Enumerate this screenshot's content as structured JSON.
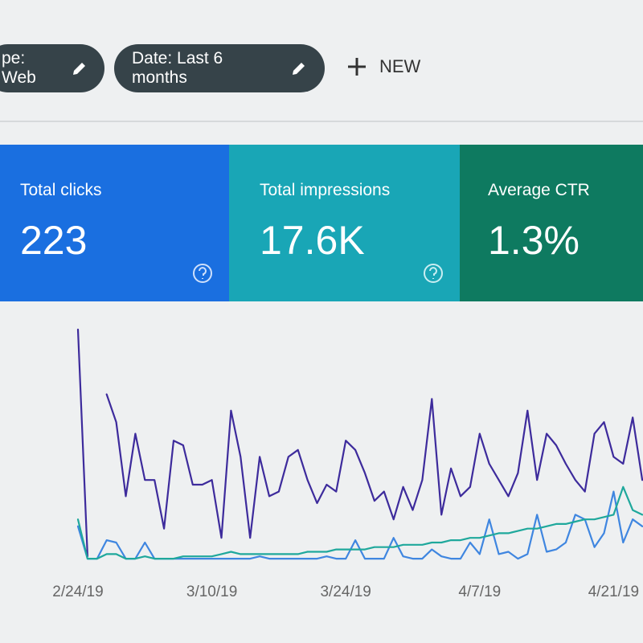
{
  "toolbar": {
    "chips": [
      "pe: Web",
      "Date: Last 6 months"
    ],
    "new_button": "NEW"
  },
  "metrics": [
    {
      "label": "Total clicks",
      "value": "223"
    },
    {
      "label": "Total impressions",
      "value": "17.6K"
    },
    {
      "label": "Average CTR",
      "value": "1.3%"
    }
  ],
  "chart_data": {
    "type": "line",
    "categories": [
      "2/24/19",
      null,
      null,
      null,
      null,
      null,
      null,
      null,
      null,
      null,
      null,
      null,
      null,
      null,
      "3/10/19",
      null,
      null,
      null,
      null,
      null,
      null,
      null,
      null,
      null,
      null,
      null,
      null,
      null,
      "3/24/19",
      null,
      null,
      null,
      null,
      null,
      null,
      null,
      null,
      null,
      null,
      null,
      null,
      null,
      "4/7/19",
      null,
      null,
      null,
      null,
      null,
      null,
      null,
      null,
      null,
      null,
      null,
      null,
      null,
      "4/21/19",
      null,
      null,
      null
    ],
    "ylim": [
      0,
      100
    ],
    "series": [
      {
        "color": "#3d2b9c",
        "values": [
          100,
          2,
          null,
          72,
          60,
          28,
          55,
          35,
          35,
          14,
          52,
          50,
          33,
          33,
          35,
          10,
          65,
          45,
          10,
          45,
          28,
          30,
          45,
          48,
          35,
          25,
          33,
          30,
          52,
          48,
          38,
          26,
          30,
          18,
          32,
          22,
          35,
          70,
          20,
          40,
          28,
          32,
          55,
          42,
          35,
          28,
          38,
          65,
          35,
          55,
          50,
          42,
          35,
          30,
          55,
          60,
          45,
          42,
          62,
          35
        ]
      },
      {
        "color": "#3f86e0",
        "values": [
          15,
          1,
          1,
          9,
          8,
          1,
          1,
          8,
          1,
          1,
          1,
          1,
          1,
          1,
          1,
          1,
          1,
          1,
          1,
          2,
          1,
          1,
          1,
          1,
          1,
          1,
          2,
          1,
          1,
          9,
          1,
          1,
          1,
          10,
          2,
          1,
          1,
          5,
          2,
          1,
          1,
          8,
          3,
          18,
          3,
          4,
          1,
          3,
          20,
          4,
          5,
          8,
          20,
          18,
          6,
          12,
          30,
          8,
          18,
          15
        ]
      },
      {
        "color": "#1fa89c",
        "values": [
          18,
          1,
          1,
          3,
          3,
          1,
          1,
          2,
          1,
          1,
          1,
          2,
          2,
          2,
          2,
          3,
          4,
          3,
          3,
          3,
          3,
          3,
          3,
          3,
          4,
          4,
          4,
          5,
          5,
          5,
          5,
          6,
          6,
          6,
          7,
          7,
          7,
          8,
          8,
          9,
          9,
          10,
          10,
          11,
          12,
          12,
          13,
          14,
          14,
          15,
          16,
          16,
          17,
          18,
          18,
          19,
          20,
          32,
          22,
          20
        ]
      }
    ]
  }
}
